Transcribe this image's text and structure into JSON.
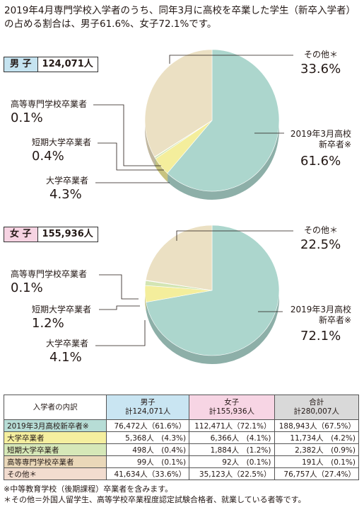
{
  "intro": "2019年4月専門学校入学者のうち、同年3月に高校を卒業した学生（新卒入学者）の占める割合は、男子61.6%、女子72.1%です。",
  "chart_data": [
    {
      "type": "pie",
      "title": "男 子",
      "subtitle": "124,071人",
      "categories": [
        "2019年3月高校新卒者※",
        "大学卒業者",
        "短期大学卒業者",
        "高等専門学校卒業者",
        "その他＊"
      ],
      "values": [
        61.6,
        4.3,
        0.4,
        0.1,
        33.6
      ],
      "value_labels": [
        "61.6%",
        "4.3%",
        "0.4%",
        "0.1%",
        "33.6%"
      ],
      "colors": [
        "#acd6cd",
        "#f4ee9c",
        "#d3e5b4",
        "#ecd2cb",
        "#ebe0c3"
      ]
    },
    {
      "type": "pie",
      "title": "女 子",
      "subtitle": "155,936人",
      "categories": [
        "2019年3月高校新卒者※",
        "大学卒業者",
        "短期大学卒業者",
        "高等専門学校卒業者",
        "その他＊"
      ],
      "values": [
        72.1,
        4.1,
        1.2,
        0.1,
        22.5
      ],
      "value_labels": [
        "72.1%",
        "4.1%",
        "1.2%",
        "0.1%",
        "22.5%"
      ],
      "colors": [
        "#acd6cd",
        "#f4ee9c",
        "#d3e5b4",
        "#ecd2cb",
        "#ebe0c3"
      ]
    }
  ],
  "table": {
    "header": [
      {
        "title": "入学者の内訳"
      },
      {
        "title": "男子",
        "total": "計124,071人"
      },
      {
        "title": "女子",
        "total": "計155,936人"
      },
      {
        "title": "合計",
        "total": "計280,007人"
      }
    ],
    "rows": [
      [
        "2019年3月高校新卒者※",
        "76,472人（61.6%）",
        "112,471人（72.1%）",
        "188,943人（67.5%）"
      ],
      [
        "大学卒業者",
        "5,368人　(4.3%)",
        "6,366人　(4.1%)",
        "11,734人　(4.2%)"
      ],
      [
        "短期大学卒業者",
        "498人　(0.4%)",
        "1,884人　(1.2%)",
        "2,382人　(0.9%)"
      ],
      [
        "高等専門学校卒業者",
        "99人　(0.1%)",
        "92人　(0.1%)",
        "191人　(0.1%)"
      ],
      [
        "その他＊",
        "41,634人（33.6%）",
        "35,123人（22.5%）",
        "76,757人（27.4%）"
      ]
    ]
  },
  "notes": [
    "※中等教育学校（後期課程）卒業者を含みます。",
    "＊その他＝外国人留学生、高等学校卒業程度認定試験合格者、就業している者等です。"
  ]
}
